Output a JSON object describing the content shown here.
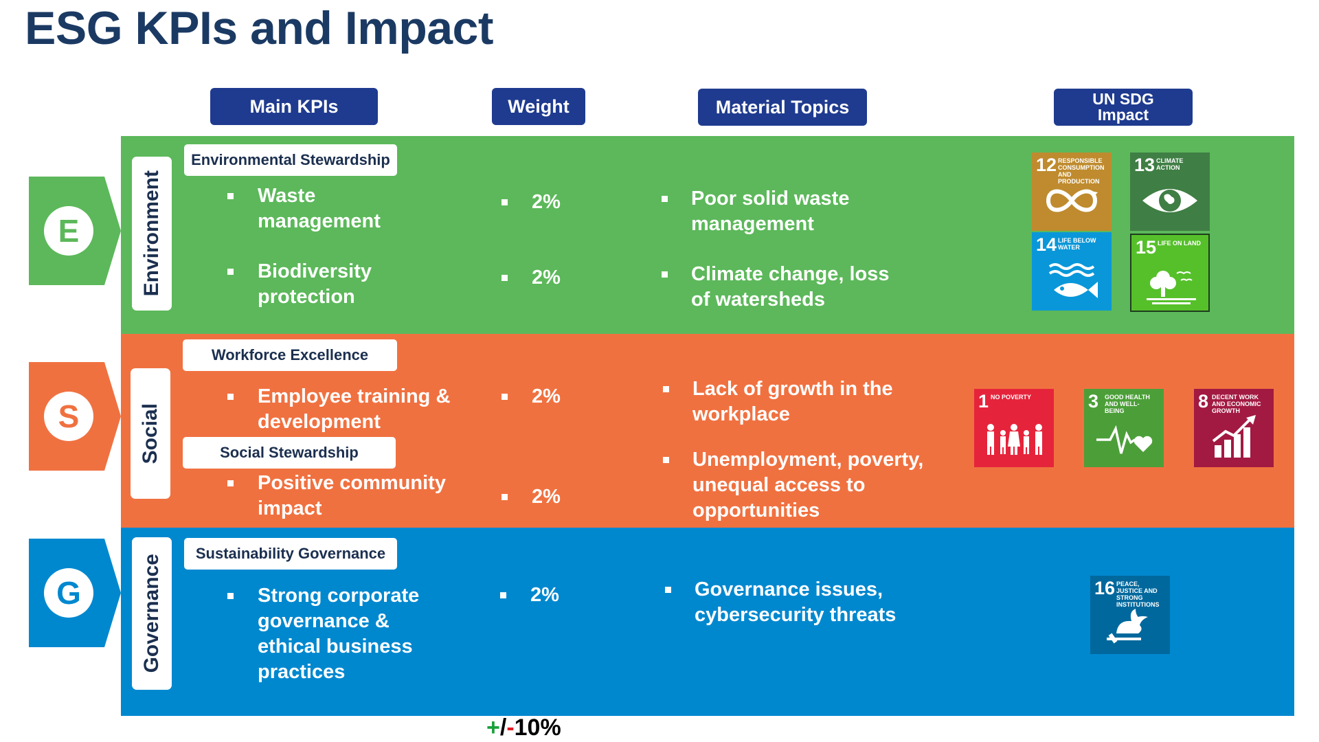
{
  "title": "ESG KPIs and Impact",
  "headers": {
    "main_kpis": "Main KPIs",
    "weight": "Weight",
    "material_topics": "Material Topics",
    "un_sdg_line1": "UN SDG",
    "un_sdg_line2": "Impact"
  },
  "colors": {
    "title": "#1b3a63",
    "header_bg": "#1f3b8f",
    "environment": "#5cb85a",
    "social": "#f07140",
    "governance": "#0088cf"
  },
  "sections": {
    "environment": {
      "letter": "E",
      "label": "Environment",
      "subgroups": [
        "Environmental Stewardship"
      ],
      "kpis": [
        "Waste management",
        "Biodiversity protection"
      ],
      "weights": [
        "2%",
        "2%"
      ],
      "topics": [
        "Poor solid waste management",
        "Climate change, loss of watersheds"
      ],
      "kpi_lines": [
        [
          "Waste",
          "management"
        ],
        [
          "Biodiversity",
          "protection"
        ]
      ],
      "topic_lines": [
        [
          "Poor solid waste",
          "management"
        ],
        [
          "Climate change, loss",
          "of watersheds"
        ]
      ]
    },
    "social": {
      "letter": "S",
      "label": "Social",
      "subgroups": [
        "Workforce Excellence",
        "Social Stewardship"
      ],
      "kpis": [
        "Employee training & development",
        "Positive community impact"
      ],
      "weights": [
        "2%",
        "2%"
      ],
      "topics": [
        "Lack of growth in the workplace",
        "Unemployment, poverty, unequal access to opportunities"
      ],
      "kpi_lines": [
        [
          "Employee training &",
          "development"
        ],
        [
          "Positive community",
          "impact"
        ]
      ],
      "topic_lines": [
        [
          "Lack of growth in the",
          "workplace"
        ],
        [
          "Unemployment, poverty,",
          "unequal access to",
          "opportunities"
        ]
      ]
    },
    "governance": {
      "letter": "G",
      "label": "Governance",
      "subgroups": [
        "Sustainability Governance"
      ],
      "kpis": [
        "Strong corporate governance & ethical business practices"
      ],
      "weights": [
        "2%"
      ],
      "topics": [
        "Governance issues, cybersecurity threats"
      ],
      "kpi_lines": [
        [
          "Strong corporate",
          "governance &",
          "ethical business",
          "practices"
        ]
      ],
      "topic_lines": [
        [
          "Governance issues,",
          "cybersecurity threats"
        ]
      ]
    }
  },
  "sdg_icons": {
    "sdg12": {
      "number": "12",
      "label": "Responsible Consumption and Production",
      "icon": "infinity-icon",
      "color": "#bf8b2e"
    },
    "sdg13": {
      "number": "13",
      "label": "Climate Action",
      "icon": "eye-globe-icon",
      "color": "#3f7e44"
    },
    "sdg14": {
      "number": "14",
      "label": "Life Below Water",
      "icon": "fish-icon",
      "color": "#0a97d9"
    },
    "sdg15": {
      "number": "15",
      "label": "Life On Land",
      "icon": "tree-birds-icon",
      "color": "#56c02b"
    },
    "sdg1": {
      "number": "1",
      "label": "No Poverty",
      "icon": "family-icon",
      "color": "#e5243b"
    },
    "sdg3": {
      "number": "3",
      "label": "Good Health and Well-Being",
      "icon": "heartbeat-icon",
      "color": "#4c9f38"
    },
    "sdg8": {
      "number": "8",
      "label": "Decent Work and Economic Growth",
      "icon": "growth-chart-icon",
      "color": "#a21942"
    },
    "sdg16": {
      "number": "16",
      "label": "Peace, Justice and Strong Institutions",
      "icon": "dove-gavel-icon",
      "color": "#00689d"
    }
  },
  "footer": {
    "plus": "+",
    "slash": "/",
    "minus": "-",
    "value": "10%"
  }
}
